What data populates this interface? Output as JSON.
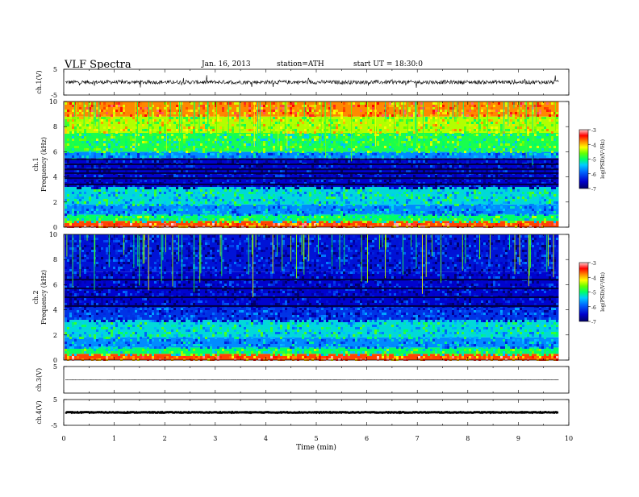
{
  "header": {
    "title": "VLF  Spectra",
    "date": "Jan. 16, 2013",
    "station": "station=ATH",
    "start": "start  UT =   18:30:0"
  },
  "chart_data": {
    "type": "heatmap",
    "xlabel": "Time  (min)",
    "xlim": [
      0,
      10
    ],
    "x_ticks": [
      "0",
      "1",
      "2",
      "3",
      "4",
      "5",
      "6",
      "7",
      "8",
      "9",
      "10"
    ],
    "data_end_min": 9.8,
    "panels": [
      {
        "name": "ch.1(V)",
        "type": "line",
        "ylabel": "ch.1(V)",
        "ylim": [
          -5,
          5
        ],
        "y_ticks": [
          "5",
          "-5"
        ],
        "baseline": 0,
        "noise_amplitude": 1.5
      },
      {
        "name": "ch.1 spectrogram",
        "type": "heatmap",
        "channel_label": "ch.1",
        "ylabel": "Frequency  (kHz)",
        "ylim": [
          0,
          10
        ],
        "y_ticks": [
          "0",
          "2",
          "4",
          "6",
          "8",
          "10"
        ],
        "dark_bands_khz": [
          3.4,
          3.9,
          4.3,
          4.6,
          5.0,
          5.4
        ],
        "colorbar": {
          "label": "log(PSD)(V²/Hz)",
          "range": [
            -7,
            -3
          ],
          "ticks": [
            "-3",
            "-4",
            "-5",
            "-6",
            "-7"
          ]
        },
        "levels": [
          {
            "fmax_khz": 0.5,
            "logpsd": -3.6
          },
          {
            "fmax_khz": 1.0,
            "logpsd": -5.0
          },
          {
            "fmax_khz": 1.8,
            "logpsd": -5.7
          },
          {
            "fmax_khz": 3.2,
            "logpsd": -5.3
          },
          {
            "fmax_khz": 5.5,
            "logpsd": -6.5
          },
          {
            "fmax_khz": 6.0,
            "logpsd": -5.7
          },
          {
            "fmax_khz": 7.5,
            "logpsd": -4.9
          },
          {
            "fmax_khz": 8.8,
            "logpsd": -4.4
          },
          {
            "fmax_khz": 10.0,
            "logpsd": -3.8
          }
        ]
      },
      {
        "name": "ch.2 spectrogram",
        "type": "heatmap",
        "channel_label": "ch.2",
        "ylabel": "Frequency  (kHz)",
        "ylim": [
          0,
          10
        ],
        "y_ticks": [
          "0",
          "2",
          "4",
          "6",
          "8",
          "10"
        ],
        "dark_bands_khz": [
          4.3,
          5.0,
          5.7,
          6.4
        ],
        "colorbar": {
          "label": "log(PSD)(V²/Hz)",
          "range": [
            -7,
            -3
          ],
          "ticks": [
            "-3",
            "-4",
            "-5",
            "-6",
            "-7"
          ]
        },
        "levels": [
          {
            "fmax_khz": 0.5,
            "logpsd": -3.6
          },
          {
            "fmax_khz": 1.0,
            "logpsd": -5.0
          },
          {
            "fmax_khz": 1.8,
            "logpsd": -5.7
          },
          {
            "fmax_khz": 3.2,
            "logpsd": -5.3
          },
          {
            "fmax_khz": 4.2,
            "logpsd": -6.2
          },
          {
            "fmax_khz": 7.0,
            "logpsd": -6.5
          },
          {
            "fmax_khz": 10.0,
            "logpsd": -6.4
          }
        ]
      },
      {
        "name": "ch.3(V)",
        "type": "line",
        "ylabel": "ch.3(V)",
        "ylim": [
          -5,
          5
        ],
        "y_ticks": [
          "5"
        ],
        "baseline": 0,
        "noise_amplitude": 0.1
      },
      {
        "name": "ch.4(V)",
        "type": "line",
        "ylabel": "ch.4(V)",
        "ylim": [
          -5,
          5
        ],
        "y_ticks": [
          "5",
          "-5"
        ],
        "baseline": 0,
        "noise_amplitude": 0.3
      }
    ]
  }
}
